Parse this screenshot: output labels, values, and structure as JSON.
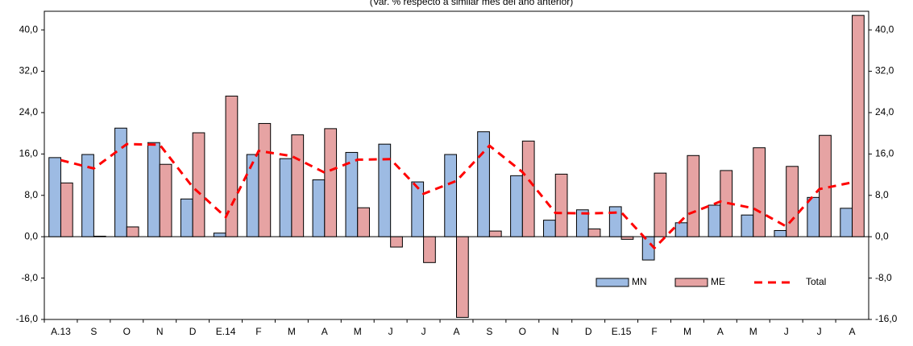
{
  "chart_data": {
    "type": "bar_line",
    "subtitle": "(Var. % respecto a similar mes del año anterior)",
    "categories": [
      "A.13",
      "S",
      "O",
      "N",
      "D",
      "E.14",
      "F",
      "M",
      "A",
      "M",
      "J",
      "J",
      "A",
      "S",
      "O",
      "N",
      "D",
      "E.15",
      "F",
      "M",
      "A",
      "M",
      "J",
      "J",
      "A"
    ],
    "series": [
      {
        "name": "MN",
        "type": "bar",
        "color": "#9dbbe3",
        "values": [
          15.3,
          15.9,
          21.0,
          18.2,
          7.3,
          0.7,
          15.9,
          15.1,
          11.0,
          16.3,
          17.9,
          10.6,
          15.9,
          20.3,
          11.8,
          3.2,
          5.2,
          5.8,
          -4.5,
          2.7,
          6.1,
          4.2,
          1.2,
          7.6,
          5.5
        ]
      },
      {
        "name": "ME",
        "type": "bar",
        "color": "#e6a3a3",
        "values": [
          10.4,
          0.1,
          1.9,
          14.0,
          20.1,
          27.2,
          21.9,
          19.7,
          20.9,
          5.6,
          -2.0,
          -5.0,
          -15.6,
          1.1,
          18.5,
          12.1,
          1.5,
          -0.5,
          12.3,
          15.7,
          12.8,
          17.2,
          13.6,
          19.6,
          42.8
        ]
      },
      {
        "name": "Total",
        "type": "line",
        "color": "#ff0000",
        "values": [
          14.8,
          13.2,
          17.9,
          17.8,
          9.6,
          3.8,
          16.6,
          15.6,
          12.4,
          14.9,
          15.0,
          8.3,
          10.8,
          17.6,
          12.5,
          4.6,
          4.5,
          4.7,
          -2.2,
          4.3,
          6.8,
          5.5,
          2.0,
          9.2,
          10.5
        ]
      }
    ],
    "ylim": [
      -16,
      43.6
    ],
    "yticks": [
      {
        "value": -16,
        "label": "-16,0"
      },
      {
        "value": -8,
        "label": "-8,0"
      },
      {
        "value": 0,
        "label": "0,0"
      },
      {
        "value": 8,
        "label": "8,0"
      },
      {
        "value": 16,
        "label": "16,0"
      },
      {
        "value": 24,
        "label": "24,0"
      },
      {
        "value": 32,
        "label": "32,0"
      },
      {
        "value": 40,
        "label": "40,0"
      }
    ],
    "legend": "lower right"
  }
}
